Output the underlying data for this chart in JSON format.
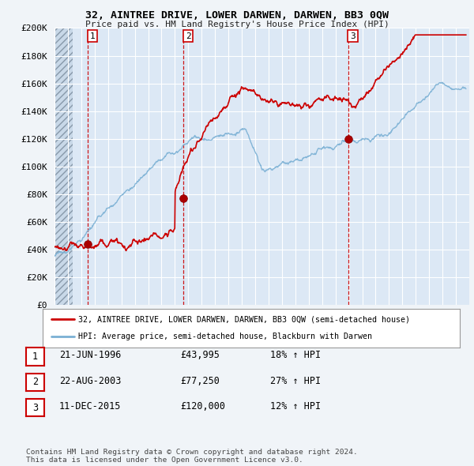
{
  "title": "32, AINTREE DRIVE, LOWER DARWEN, DARWEN, BB3 0QW",
  "subtitle": "Price paid vs. HM Land Registry's House Price Index (HPI)",
  "xlim_start": 1994.0,
  "xlim_end": 2025.0,
  "ylim": [
    0,
    200000
  ],
  "yticks": [
    0,
    20000,
    40000,
    60000,
    80000,
    100000,
    120000,
    140000,
    160000,
    180000,
    200000
  ],
  "ytick_labels": [
    "£0",
    "£20K",
    "£40K",
    "£60K",
    "£80K",
    "£100K",
    "£120K",
    "£140K",
    "£160K",
    "£180K",
    "£200K"
  ],
  "sale_dates": [
    1996.47,
    2003.64,
    2015.95
  ],
  "sale_prices": [
    43995,
    77250,
    120000
  ],
  "sale_labels": [
    "1",
    "2",
    "3"
  ],
  "vline_color": "#cc0000",
  "sale_marker_color": "#aa0000",
  "property_line_color": "#cc0000",
  "hpi_line_color": "#7ab0d4",
  "plot_bg_color": "#dce8f5",
  "bg_color": "#f0f4f8",
  "grid_color": "#ffffff",
  "hatch_bg_color": "#c8d8e8",
  "legend_label_property": "32, AINTREE DRIVE, LOWER DARWEN, DARWEN, BB3 0QW (semi-detached house)",
  "legend_label_hpi": "HPI: Average price, semi-detached house, Blackburn with Darwen",
  "table_rows": [
    [
      "1",
      "21-JUN-1996",
      "£43,995",
      "18% ↑ HPI"
    ],
    [
      "2",
      "22-AUG-2003",
      "£77,250",
      "27% ↑ HPI"
    ],
    [
      "3",
      "11-DEC-2015",
      "£120,000",
      "12% ↑ HPI"
    ]
  ],
  "footer": "Contains HM Land Registry data © Crown copyright and database right 2024.\nThis data is licensed under the Open Government Licence v3.0."
}
